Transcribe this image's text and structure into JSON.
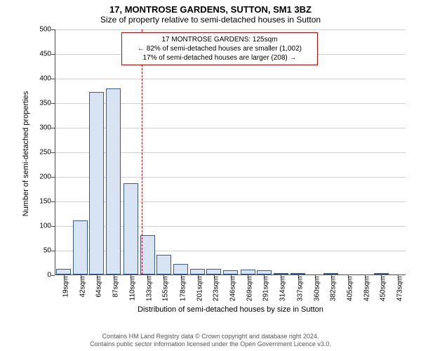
{
  "header": {
    "title": "17, MONTROSE GARDENS, SUTTON, SM1 3BZ",
    "subtitle": "Size of property relative to semi-detached houses in Sutton"
  },
  "chart": {
    "type": "histogram",
    "ylim": [
      0,
      500
    ],
    "ytick_step": 50,
    "ylabel": "Number of semi-detached properties",
    "xlabel": "Distribution of semi-detached houses by size in Sutton",
    "bar_fill": "#d8e4f4",
    "bar_stroke": "#3a5a8a",
    "grid_color": "#d0d0d0",
    "background_color": "#ffffff",
    "ref_line_color": "#cc0000",
    "ref_value": 125,
    "x_categories": [
      "19sqm",
      "42sqm",
      "64sqm",
      "87sqm",
      "110sqm",
      "133sqm",
      "155sqm",
      "178sqm",
      "201sqm",
      "223sqm",
      "246sqm",
      "269sqm",
      "291sqm",
      "314sqm",
      "337sqm",
      "360sqm",
      "382sqm",
      "405sqm",
      "428sqm",
      "450sqm",
      "473sqm"
    ],
    "x_values_numeric": [
      19,
      42,
      64,
      87,
      110,
      133,
      155,
      178,
      201,
      223,
      246,
      269,
      291,
      314,
      337,
      360,
      382,
      405,
      428,
      450,
      473
    ],
    "bar_values": [
      12,
      110,
      372,
      378,
      186,
      80,
      40,
      22,
      12,
      12,
      8,
      10,
      8,
      2,
      2,
      0,
      2,
      0,
      0,
      2,
      0
    ],
    "bar_width_units": 20
  },
  "infobox": {
    "line1": "17 MONTROSE GARDENS: 125sqm",
    "line2": "← 82% of semi-detached houses are smaller (1,002)",
    "line3": "17% of semi-detached houses are larger (208) →"
  },
  "footer": {
    "line1": "Contains HM Land Registry data © Crown copyright and database right 2024.",
    "line2": "Contains public sector information licensed under the Open Government Licence v3.0."
  }
}
